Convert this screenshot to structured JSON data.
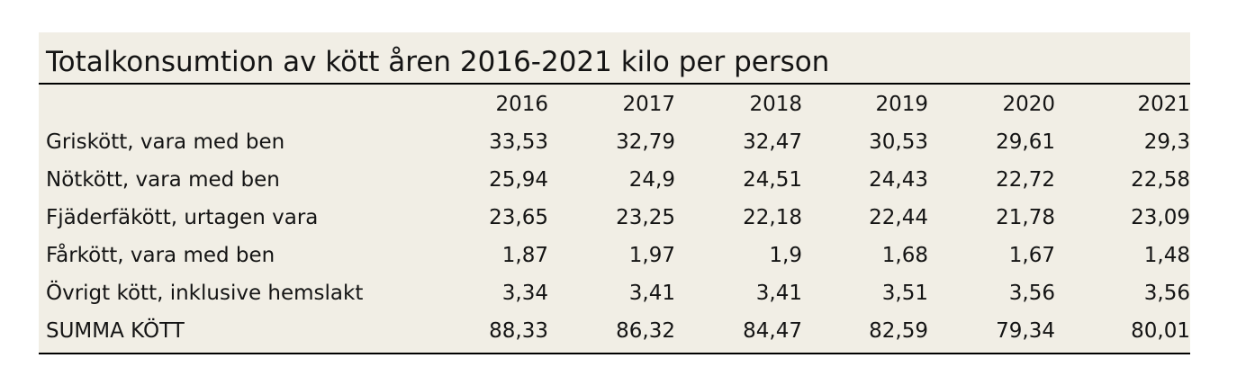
{
  "chart_data": {
    "type": "table",
    "title": "Totalkonsumtion av kött åren 2016-2021 kilo per person",
    "columns": [
      "2016",
      "2017",
      "2018",
      "2019",
      "2020",
      "2021"
    ],
    "rows": [
      {
        "label": "Griskött, vara med ben",
        "values": [
          "33,53",
          "32,79",
          "32,47",
          "30,53",
          "29,61",
          "29,3"
        ]
      },
      {
        "label": "Nötkött, vara med ben",
        "values": [
          "25,94",
          "24,9",
          "24,51",
          "24,43",
          "22,72",
          "22,58"
        ]
      },
      {
        "label": "Fjäderfäkött, urtagen vara",
        "values": [
          "23,65",
          "23,25",
          "22,18",
          "22,44",
          "21,78",
          "23,09"
        ]
      },
      {
        "label": "Fårkött, vara med ben",
        "values": [
          "1,87",
          "1,97",
          "1,9",
          "1,68",
          "1,67",
          "1,48"
        ]
      },
      {
        "label": "Övrigt kött, inklusive hemslakt",
        "values": [
          "3,34",
          "3,41",
          "3,41",
          "3,51",
          "3,56",
          "3,56"
        ]
      },
      {
        "label": "SUMMA KÖTT",
        "values": [
          "88,33",
          "86,32",
          "84,47",
          "82,59",
          "79,34",
          "80,01"
        ]
      }
    ],
    "colors": {
      "background": "#f1eee5",
      "text": "#141414",
      "rule": "#000000"
    }
  }
}
